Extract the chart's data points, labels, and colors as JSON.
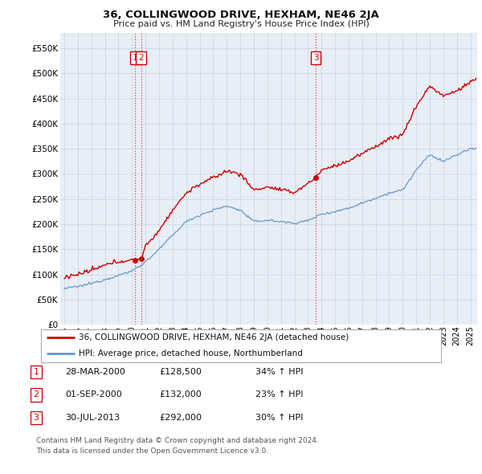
{
  "title": "36, COLLINGWOOD DRIVE, HEXHAM, NE46 2JA",
  "subtitle": "Price paid vs. HM Land Registry's House Price Index (HPI)",
  "ylabel_ticks": [
    "£0",
    "£50K",
    "£100K",
    "£150K",
    "£200K",
    "£250K",
    "£300K",
    "£350K",
    "£400K",
    "£450K",
    "£500K",
    "£550K"
  ],
  "ytick_vals": [
    0,
    50000,
    100000,
    150000,
    200000,
    250000,
    300000,
    350000,
    400000,
    450000,
    500000,
    550000
  ],
  "ylim": [
    0,
    580000
  ],
  "xlim_start": 1994.7,
  "xlim_end": 2025.5,
  "sale_color": "#cc0000",
  "hpi_color": "#6699cc",
  "plot_bg_color": "#e8eef5",
  "legend_sale_label": "36, COLLINGWOOD DRIVE, HEXHAM, NE46 2JA (detached house)",
  "legend_hpi_label": "HPI: Average price, detached house, Northumberland",
  "transactions": [
    {
      "num": "1",
      "date": "28-MAR-2000",
      "price": 128500,
      "price_str": "£128,500",
      "pct": "34%",
      "direction": "↑",
      "year_x": 2000.24
    },
    {
      "num": "2",
      "date": "01-SEP-2000",
      "price": 132000,
      "price_str": "£132,000",
      "pct": "23%",
      "direction": "↑",
      "year_x": 2000.67
    },
    {
      "num": "3",
      "date": "30-JUL-2013",
      "price": 292000,
      "price_str": "£292,000",
      "pct": "30%",
      "direction": "↑",
      "year_x": 2013.58
    }
  ],
  "footnote1": "Contains HM Land Registry data © Crown copyright and database right 2024.",
  "footnote2": "This data is licensed under the Open Government Licence v3.0.",
  "background_color": "#ffffff",
  "grid_color": "#c8d4e0",
  "hpi_anchors_x": [
    1995,
    1996,
    1997,
    1998,
    1999,
    2000,
    2001,
    2002,
    2003,
    2004,
    2005,
    2006,
    2007,
    2008,
    2009,
    2010,
    2011,
    2012,
    2013,
    2014,
    2015,
    2016,
    2017,
    2018,
    2019,
    2020,
    2021,
    2022,
    2023,
    2024,
    2025
  ],
  "hpi_anchors_y": [
    72000,
    76000,
    82000,
    90000,
    98000,
    107000,
    125000,
    150000,
    178000,
    205000,
    218000,
    228000,
    236000,
    228000,
    205000,
    208000,
    205000,
    202000,
    207000,
    220000,
    225000,
    232000,
    242000,
    252000,
    262000,
    268000,
    308000,
    338000,
    325000,
    338000,
    350000
  ],
  "sale_anchors_x": [
    1995,
    1996,
    1997,
    1998,
    1999,
    2000.24,
    2000.67,
    2001,
    2002,
    2003,
    2004,
    2005,
    2006,
    2007,
    2008,
    2009,
    2010,
    2011,
    2012,
    2013.58,
    2014,
    2015,
    2016,
    2017,
    2018,
    2019,
    2020,
    2021,
    2022,
    2023,
    2024,
    2025.3
  ],
  "sale_anchors_y": [
    95000,
    100000,
    108000,
    118000,
    126000,
    128500,
    132000,
    155000,
    188000,
    228000,
    262000,
    280000,
    292000,
    306000,
    300000,
    268000,
    274000,
    268000,
    263000,
    292000,
    308000,
    316000,
    326000,
    340000,
    355000,
    370000,
    378000,
    435000,
    475000,
    455000,
    465000,
    488000
  ]
}
